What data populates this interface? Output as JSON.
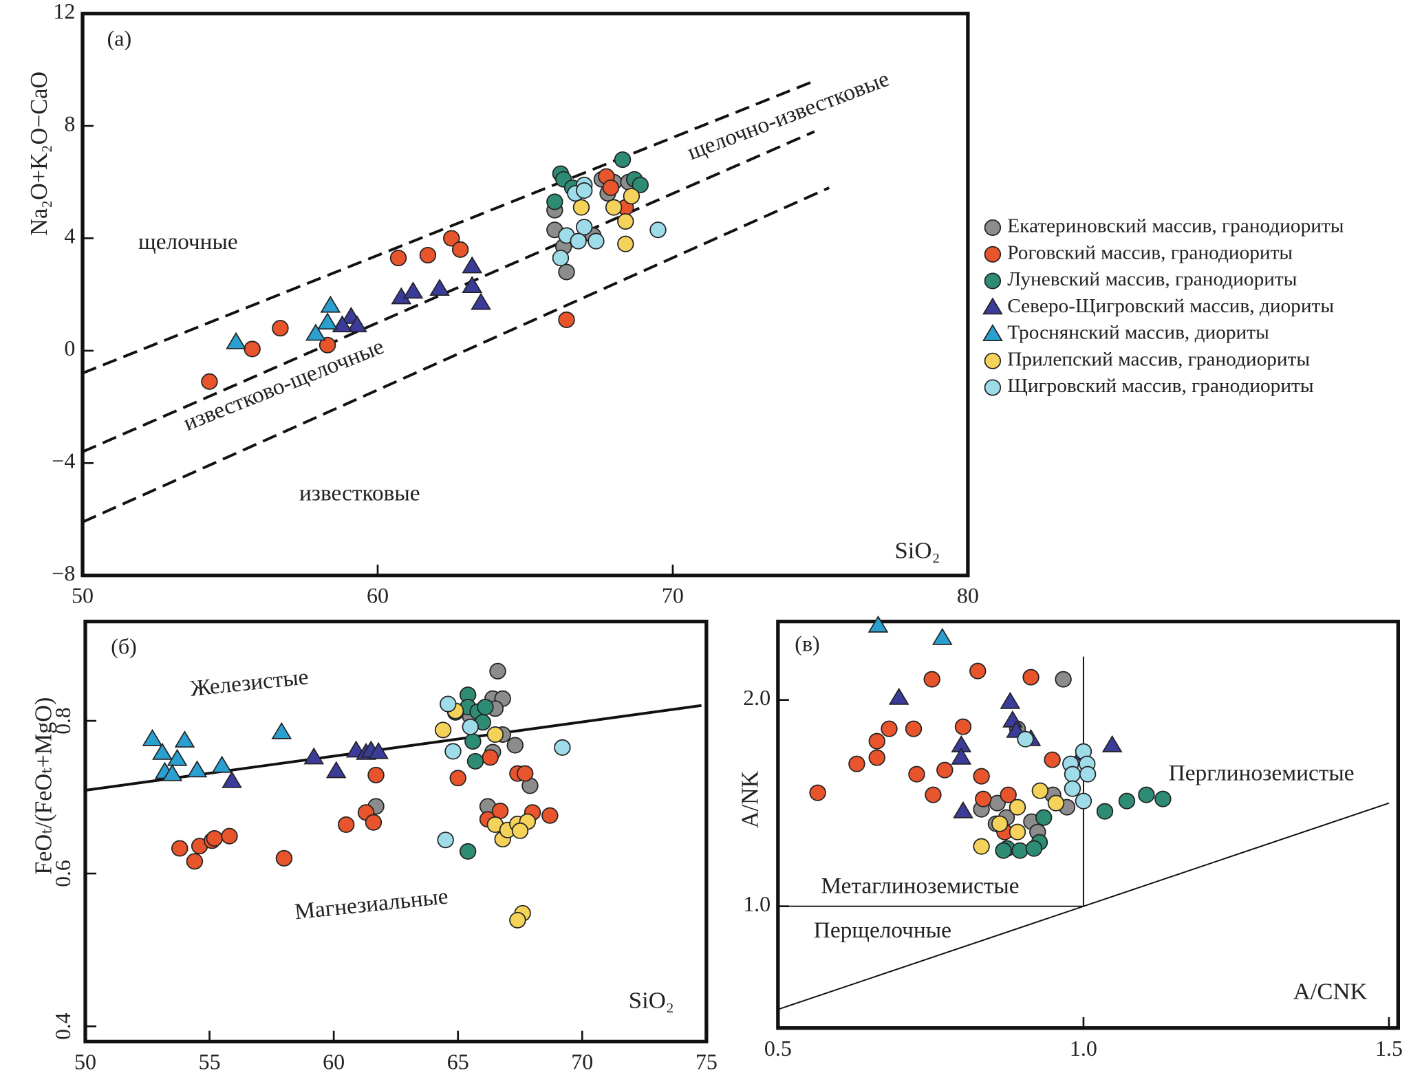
{
  "chart_data": [
    {
      "type": "scatter",
      "panel_label": "(а)",
      "xlabel": "SiO₂",
      "ylabel": "Na₂O+K₂O−CaO",
      "xlim": [
        50,
        80
      ],
      "ylim": [
        -8,
        12
      ],
      "xticks": [
        50,
        60,
        70,
        80
      ],
      "yticks": [
        {
          "value": -8,
          "label": "−8"
        },
        {
          "value": -4,
          "label": "−4"
        },
        0,
        4,
        8,
        12
      ],
      "legend": "right",
      "annotations": [
        "щелочные",
        "щелочно-известковые",
        "известково-щелочные",
        "известковые"
      ],
      "lines": [
        {
          "style": "dashed",
          "x": [
            50,
            74.8
          ],
          "y": [
            -0.8,
            9.6
          ]
        },
        {
          "style": "dashed",
          "x": [
            50,
            74.8
          ],
          "y": [
            -3.6,
            7.8
          ]
        },
        {
          "style": "dashed",
          "x": [
            50,
            75.3
          ],
          "y": [
            -6.1,
            5.8
          ]
        }
      ],
      "series": [
        {
          "name": "Екатериновский массив, гранодиориты",
          "color": "#8c8c8c",
          "marker": "circle",
          "x": [
            66.0,
            66.0,
            66.3,
            66.4,
            67.6,
            67.8,
            68.0,
            68.5,
            67.3
          ],
          "values": [
            4.3,
            5.0,
            3.7,
            2.8,
            6.1,
            5.6,
            6.0,
            6.0,
            4.1
          ]
        },
        {
          "name": "Роговский массив, гранодиориты",
          "color": "#e8542c",
          "marker": "circle",
          "x": [
            54.3,
            55.75,
            56.7,
            58.3,
            60.7,
            61.7,
            62.5,
            62.8,
            66.4,
            67.75,
            68.4,
            67.9
          ],
          "values": [
            -1.1,
            0.06,
            0.8,
            0.2,
            3.3,
            3.4,
            4.0,
            3.6,
            1.1,
            6.2,
            5.1,
            5.8
          ]
        },
        {
          "name": "Луневский массив, гранодиориты",
          "color": "#2f8c74",
          "marker": "circle",
          "x": [
            66.2,
            66.3,
            66.0,
            68.3,
            68.7,
            68.9,
            66.6
          ],
          "values": [
            6.3,
            6.1,
            5.3,
            6.8,
            6.1,
            5.9,
            5.8
          ]
        },
        {
          "name": "Северо-Щигровский массив, диориты",
          "color": "#3b3b99",
          "marker": "triangle",
          "x": [
            60.8,
            61.2,
            62.1,
            63.2,
            63.2,
            63.5,
            59.1,
            59.3,
            58.8
          ],
          "values": [
            1.9,
            2.1,
            2.2,
            3.0,
            2.3,
            1.7,
            1.2,
            0.9,
            0.9
          ]
        },
        {
          "name": "Троснянский массив, диориты",
          "color": "#2aa0d0",
          "marker": "triangle",
          "x": [
            55.2,
            57.9,
            58.3,
            58.4
          ],
          "values": [
            0.3,
            0.6,
            1.0,
            1.6
          ]
        },
        {
          "name": "Прилепский массив, гранодиориты",
          "color": "#f5d25a",
          "marker": "circle",
          "x": [
            66.9,
            68.0,
            68.4,
            68.4,
            68.6
          ],
          "values": [
            5.1,
            5.1,
            4.6,
            3.8,
            5.5
          ]
        },
        {
          "name": "Щигровский массив, гранодиориты",
          "color": "#9fdcea",
          "marker": "circle",
          "x": [
            67.0,
            66.7,
            67.0,
            67.0,
            66.4,
            66.2,
            66.8,
            67.4,
            69.5
          ],
          "values": [
            5.9,
            5.6,
            5.7,
            4.4,
            4.1,
            3.3,
            3.9,
            3.9,
            4.3
          ]
        }
      ]
    },
    {
      "type": "scatter",
      "panel_label": "(б)",
      "xlabel": "SiO₂",
      "ylabel": "FeOₜ/(FeOₜ+MgO)",
      "xlim": [
        50,
        75
      ],
      "ylim": [
        0.38,
        0.93
      ],
      "xticks": [
        50,
        55,
        60,
        65,
        70,
        75
      ],
      "yticks": [
        0.4,
        0.6,
        0.8
      ],
      "annotations": [
        "Железистые",
        "Магнезиальные"
      ],
      "lines": [
        {
          "style": "solid",
          "x": [
            50,
            74.8
          ],
          "y": [
            0.709,
            0.82
          ]
        }
      ],
      "series": [
        {
          "color": "#8c8c8c",
          "marker": "circle",
          "x": [
            66.6,
            66.4,
            66.8,
            66.5,
            66.8,
            66.4,
            67.3,
            67.9,
            66.2,
            61.7,
            65.5
          ],
          "values": [
            0.865,
            0.829,
            0.829,
            0.816,
            0.782,
            0.759,
            0.768,
            0.715,
            0.688,
            0.688,
            0.806
          ]
        },
        {
          "color": "#e8542c",
          "marker": "circle",
          "x": [
            53.8,
            54.4,
            54.6,
            55.1,
            55.2,
            55.8,
            58.0,
            60.5,
            61.3,
            61.6,
            61.7,
            65.0,
            66.3,
            66.2,
            67.4,
            67.7,
            68.0,
            68.7,
            66.7
          ],
          "values": [
            0.633,
            0.616,
            0.636,
            0.643,
            0.646,
            0.649,
            0.62,
            0.664,
            0.68,
            0.667,
            0.729,
            0.725,
            0.752,
            0.671,
            0.731,
            0.731,
            0.68,
            0.676,
            0.682
          ]
        },
        {
          "color": "#2f8c74",
          "marker": "circle",
          "x": [
            65.4,
            64.9,
            65.4,
            65.8,
            66.0,
            65.6,
            65.7,
            65.4,
            66.1
          ],
          "values": [
            0.834,
            0.811,
            0.818,
            0.812,
            0.798,
            0.773,
            0.747,
            0.629,
            0.818
          ]
        },
        {
          "color": "#3b3b99",
          "marker": "triangle",
          "x": [
            55.9,
            59.2,
            60.1,
            60.9,
            61.3,
            61.5,
            61.8
          ],
          "values": [
            0.721,
            0.752,
            0.734,
            0.761,
            0.758,
            0.761,
            0.759
          ]
        },
        {
          "color": "#2aa0d0",
          "marker": "triangle",
          "x": [
            52.7,
            53.1,
            53.7,
            54.0,
            53.2,
            53.5,
            54.5,
            55.5,
            57.9
          ],
          "values": [
            0.776,
            0.758,
            0.75,
            0.774,
            0.733,
            0.73,
            0.735,
            0.741,
            0.785
          ]
        },
        {
          "color": "#f5d25a",
          "marker": "circle",
          "x": [
            64.4,
            64.9,
            66.5,
            66.5,
            66.8,
            67.0,
            67.4,
            67.8,
            67.5,
            67.6,
            67.4
          ],
          "values": [
            0.788,
            0.813,
            0.782,
            0.664,
            0.645,
            0.657,
            0.665,
            0.668,
            0.656,
            0.548,
            0.539
          ]
        },
        {
          "color": "#9fdcea",
          "marker": "circle",
          "x": [
            64.6,
            64.8,
            65.5,
            64.5,
            69.2
          ],
          "values": [
            0.822,
            0.76,
            0.792,
            0.644,
            0.765
          ]
        }
      ]
    },
    {
      "type": "scatter",
      "panel_label": "(в)",
      "xlabel": "A/CNK",
      "ylabel": "A/NK",
      "xlim": [
        0.5,
        1.515
      ],
      "ylim": [
        0.41,
        2.38
      ],
      "xticks": [
        0.5,
        {
          "value": 1,
          "label": "1.0"
        },
        1.5
      ],
      "yticks": [
        {
          "value": 1,
          "label": "1.0"
        },
        {
          "value": 2,
          "label": "2.0"
        }
      ],
      "annotations": [
        "Метаглиноземистые",
        "Перщелочные",
        "Перглиноземистые"
      ],
      "lines": [
        {
          "style": "solid",
          "x": [
            1,
            1
          ],
          "y": [
            1,
            2.21
          ]
        },
        {
          "style": "solid",
          "x": [
            0.5,
            1
          ],
          "y": [
            1,
            1
          ]
        },
        {
          "style": "solid",
          "x": [
            0.5,
            1.5
          ],
          "y": [
            0.5,
            1.5
          ]
        }
      ],
      "series": [
        {
          "color": "#8c8c8c",
          "marker": "circle",
          "x": [
            0.967,
            0.892,
            0.95,
            0.973,
            0.833,
            0.859,
            0.874,
            0.915,
            0.925,
            0.857
          ],
          "values": [
            2.1,
            1.86,
            1.54,
            1.48,
            1.47,
            1.5,
            1.43,
            1.41,
            1.36,
            1.4
          ]
        },
        {
          "color": "#e8542c",
          "marker": "circle",
          "x": [
            0.565,
            0.629,
            0.662,
            0.682,
            0.722,
            0.752,
            0.827,
            0.914,
            0.803,
            0.662,
            0.727,
            0.754,
            0.773,
            0.833,
            0.836,
            0.949,
            0.877,
            0.871
          ],
          "values": [
            1.55,
            1.69,
            1.8,
            1.86,
            1.86,
            2.1,
            2.14,
            2.11,
            1.87,
            1.72,
            1.64,
            1.54,
            1.66,
            1.63,
            1.52,
            1.71,
            1.54,
            1.36
          ]
        },
        {
          "color": "#2f8c74",
          "marker": "circle",
          "x": [
            0.935,
            0.928,
            1.035,
            1.071,
            1.103,
            1.13,
            0.875,
            0.896,
            0.919,
            0.869
          ],
          "values": [
            1.43,
            1.31,
            1.46,
            1.51,
            1.54,
            1.52,
            1.28,
            1.27,
            1.28,
            1.27
          ]
        },
        {
          "color": "#3b3b99",
          "marker": "triangle",
          "x": [
            0.698,
            0.88,
            0.884,
            0.89,
            0.914,
            0.8,
            0.8,
            0.803,
            1.047,
            0.998
          ],
          "values": [
            2.01,
            1.99,
            1.9,
            1.85,
            1.81,
            1.78,
            1.72,
            1.46,
            1.78,
            1.74
          ]
        },
        {
          "color": "#2aa0d0",
          "marker": "triangle",
          "x": [
            0.664,
            0.769
          ],
          "values": [
            2.36,
            2.3
          ]
        },
        {
          "color": "#f5d25a",
          "marker": "circle",
          "x": [
            0.833,
            0.929,
            0.955,
            0.892,
            0.863,
            0.892
          ],
          "values": [
            1.29,
            1.56,
            1.5,
            1.48,
            1.4,
            1.36
          ]
        },
        {
          "color": "#9fdcea",
          "marker": "circle",
          "x": [
            1.0,
            0.979,
            1.006,
            0.982,
            1.007,
            0.982,
            1.0,
            0.905
          ],
          "values": [
            1.75,
            1.69,
            1.69,
            1.64,
            1.64,
            1.57,
            1.51,
            1.81
          ]
        }
      ]
    }
  ]
}
